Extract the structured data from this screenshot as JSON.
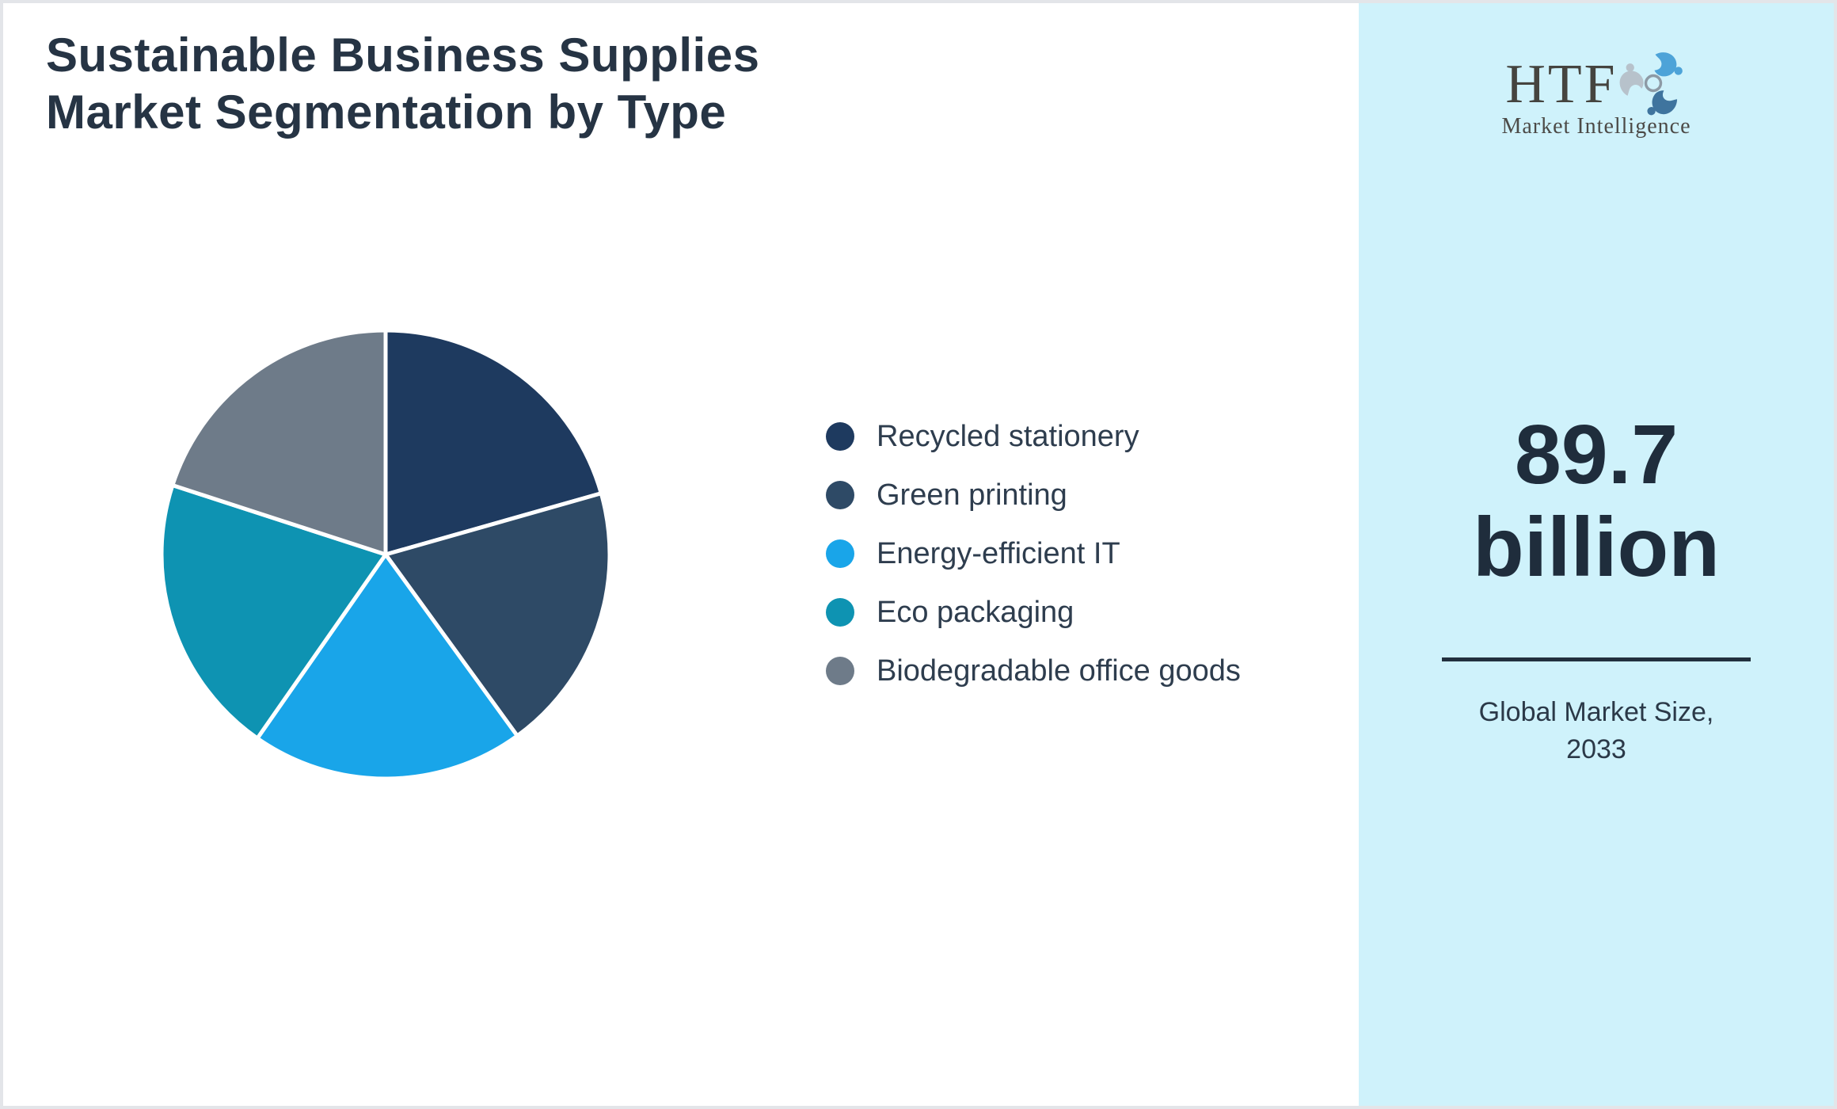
{
  "header": {
    "title": "Sustainable Business Supplies\nMarket Segmentation by Type"
  },
  "logo": {
    "text": "HTF",
    "subtitle": "Market Intelligence"
  },
  "chart_data": {
    "type": "pie",
    "title": "Sustainable Business Supplies Market Segmentation by Type",
    "legend_position": "right",
    "start_angle": "top (12 o'clock), clockwise",
    "values_are_percent_estimated_from_angles": true,
    "segments": [
      {
        "label": "Recycled stationery",
        "value": 20.6,
        "color": "#1e3a5f"
      },
      {
        "label": "Green printing",
        "value": 19.4,
        "color": "#2e4a66"
      },
      {
        "label": "Energy-efficient IT",
        "value": 19.7,
        "color": "#19a5e9"
      },
      {
        "label": "Eco packaging",
        "value": 20.3,
        "color": "#0e93b2"
      },
      {
        "label": "Biodegradable office goods",
        "value": 20.0,
        "color": "#6e7b89"
      }
    ],
    "slice_gap_color": "#ffffff"
  },
  "stat_panel": {
    "value": "89.7\nbillion",
    "caption": "Global Market Size,\n2033",
    "background": "#cff2fb",
    "divider_color": "#22303e"
  }
}
